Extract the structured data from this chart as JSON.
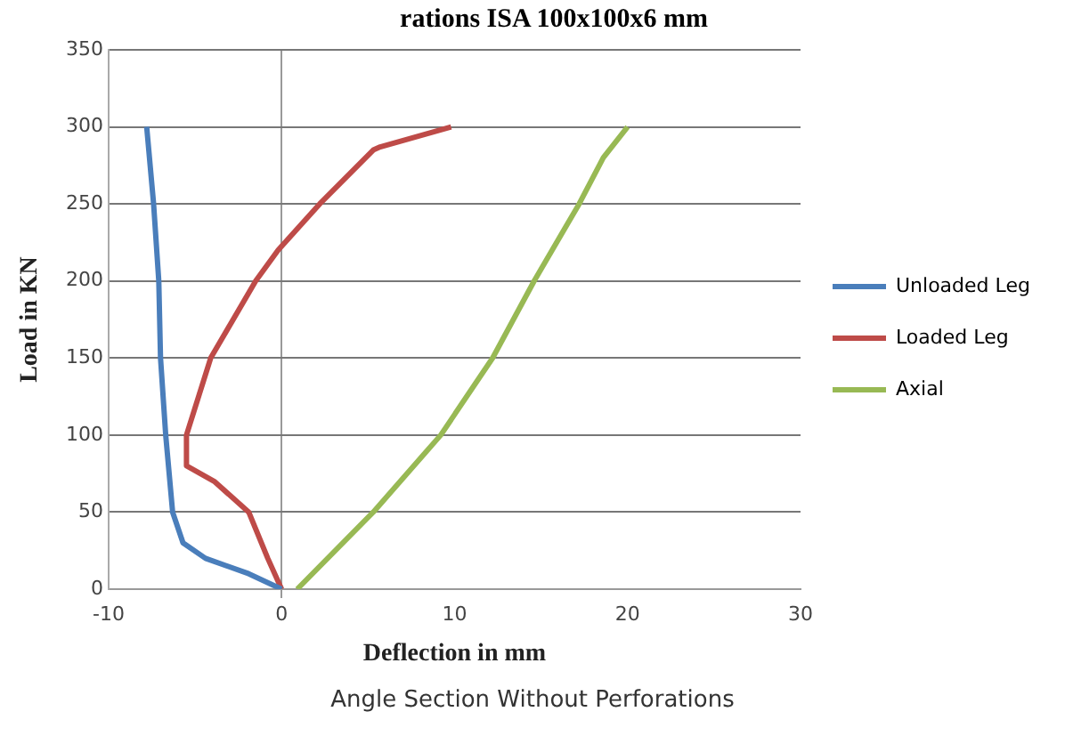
{
  "chart_data": {
    "type": "line",
    "title": "rations ISA 100x100x6 mm",
    "xlabel": "Deflection in mm",
    "ylabel": "Load in KN",
    "annotations": [
      "Angle Section Without Perforations"
    ],
    "xlim": [
      -10,
      30
    ],
    "xticks": [
      -10,
      0,
      10,
      20,
      30
    ],
    "ylim": [
      0,
      350
    ],
    "yticks": [
      0,
      50,
      100,
      150,
      200,
      250,
      300,
      350
    ],
    "grid": "y",
    "legend": "right",
    "marker": "none",
    "line_style": "solid",
    "series": [
      {
        "name": "Unloaded Leg",
        "color": "#4a7ebb",
        "x": [
          0,
          -1.9,
          -4.4,
          -5.7,
          -6.3,
          -6.7,
          -7.0,
          -7.1,
          -7.4,
          -7.8
        ],
        "values": [
          0,
          10,
          20,
          30,
          50,
          100,
          150,
          200,
          250,
          300
        ]
      },
      {
        "name": "Loaded Leg",
        "color": "#be4b48",
        "x": [
          0,
          -0.8,
          -1.9,
          -3.9,
          -5.5,
          -5.5,
          -4.1,
          -1.5,
          -0.2,
          2.2,
          5.3,
          5.7,
          9.8
        ],
        "values": [
          0,
          20,
          50,
          70,
          80,
          100,
          150,
          200,
          220,
          250,
          285,
          287,
          300
        ]
      },
      {
        "name": "Axial",
        "color": "#98b954",
        "x": [
          0.9,
          5.3,
          9.2,
          12.2,
          14.6,
          17.2,
          18.6,
          20
        ],
        "values": [
          0,
          50,
          100,
          150,
          200,
          250,
          280,
          300
        ]
      }
    ]
  }
}
